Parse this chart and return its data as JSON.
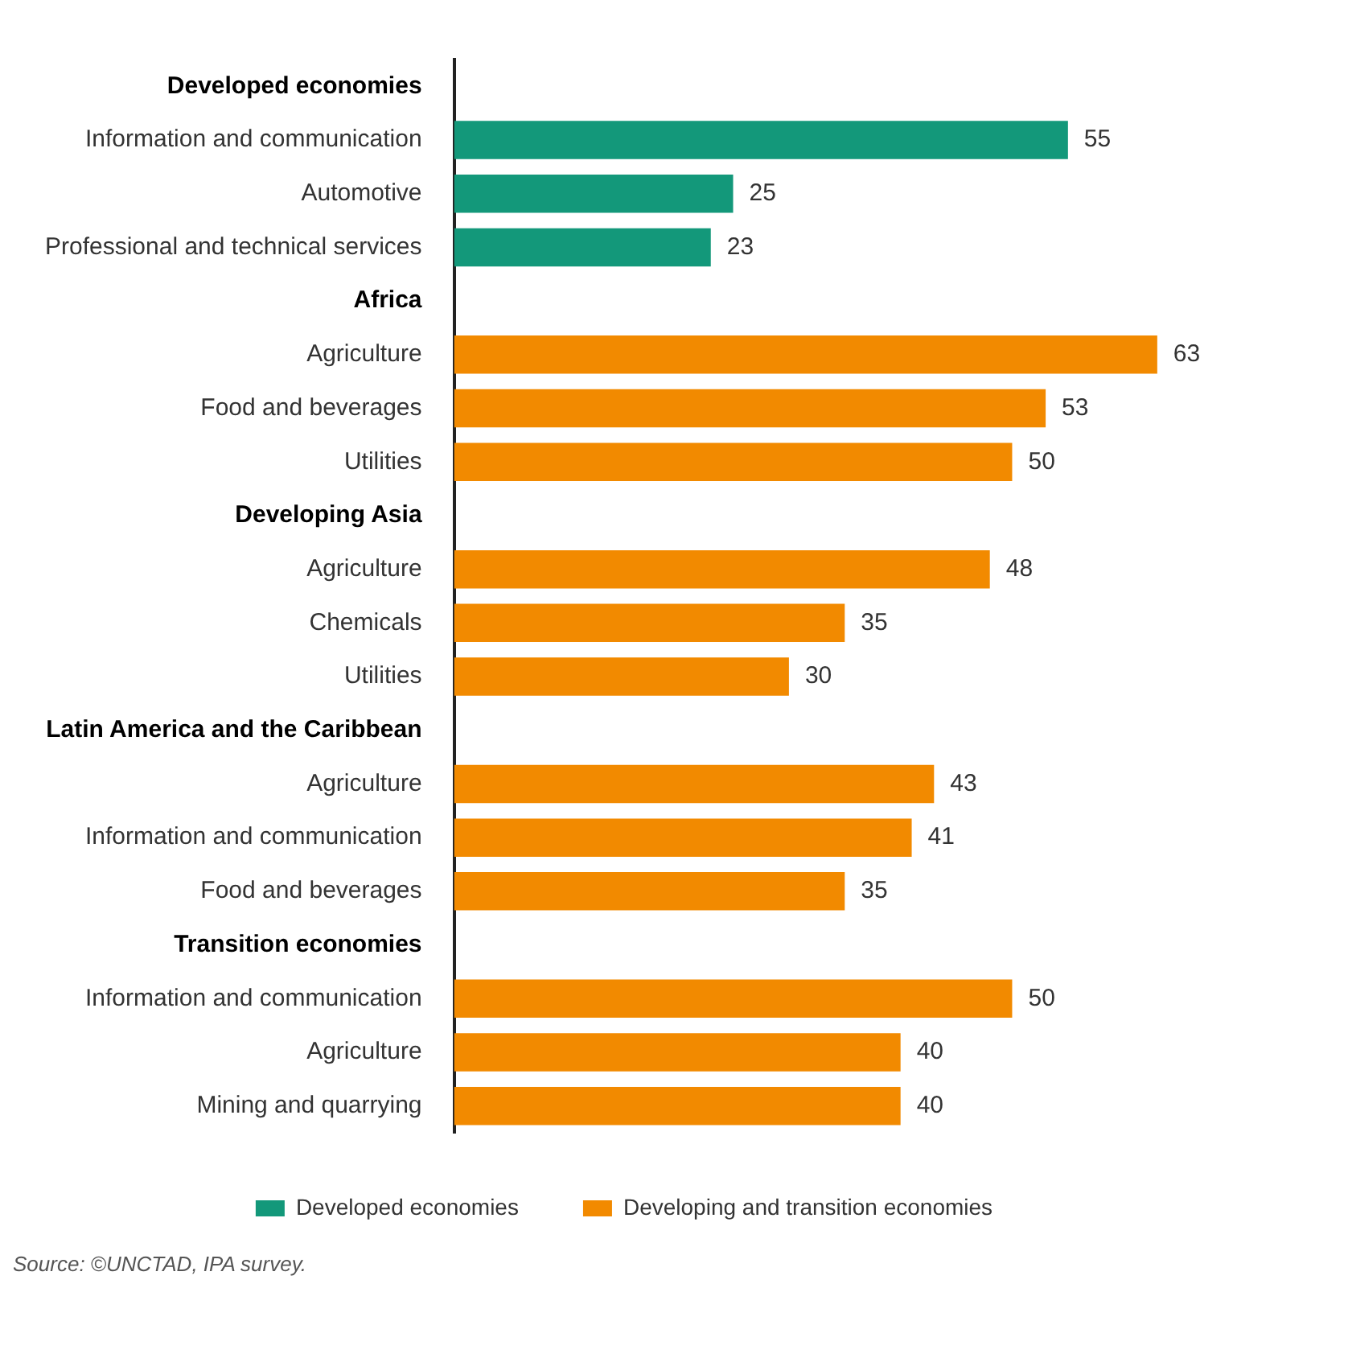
{
  "chart_data": {
    "type": "bar",
    "orientation": "horizontal",
    "categories": [
      "Developed economies",
      "Information and communication",
      "Automotive",
      "Professional and technical services",
      "Africa",
      "Agriculture",
      "Food and beverages",
      "Utilities",
      "Developing Asia",
      "Agriculture",
      "Chemicals",
      "Utilities",
      "Latin America and the Caribbean",
      "Agriculture",
      "Information and communication",
      "Food and beverages",
      "Transition economies",
      "Information and communication",
      "Agriculture",
      "Mining and quarrying"
    ],
    "series": [
      {
        "name": "Developed economies",
        "color": "#13987a",
        "values": [
          null,
          55,
          25,
          23,
          null,
          null,
          null,
          null,
          null,
          null,
          null,
          null,
          null,
          null,
          null,
          null,
          null,
          null,
          null,
          null
        ]
      },
      {
        "name": "Developing and transition economies",
        "color": "#f28a00",
        "values": [
          null,
          null,
          null,
          null,
          null,
          63,
          53,
          50,
          null,
          48,
          35,
          30,
          null,
          43,
          41,
          35,
          null,
          50,
          40,
          40
        ]
      }
    ],
    "data_labels": true,
    "legend": "bottom",
    "annotations": [
      "Source: ©UNCTAD, IPA survey."
    ]
  }
}
